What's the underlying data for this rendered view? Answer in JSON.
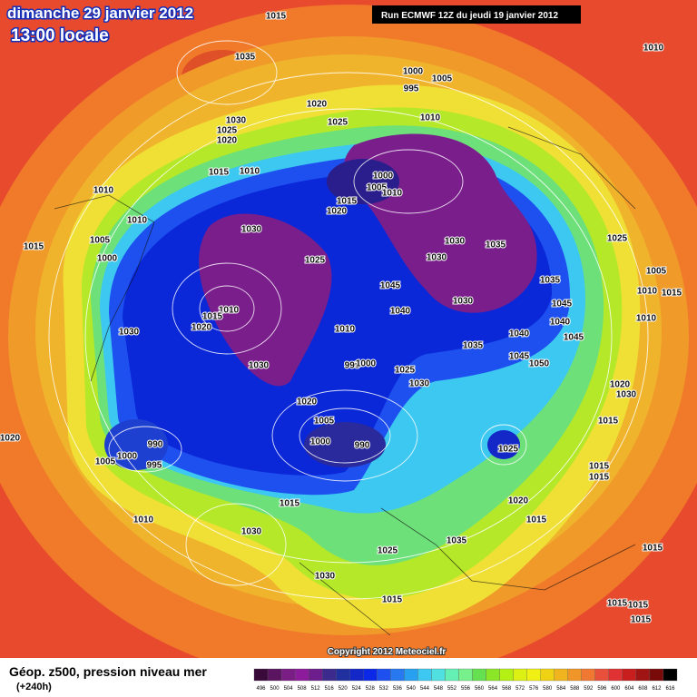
{
  "header": {
    "date": "dimanche 29 janvier 2012",
    "time": "13:00 locale",
    "run": "Run ECMWF 12Z du jeudi 19 janvier 2012"
  },
  "copyright": "Copyright 2012 Meteociel.fr",
  "legend": {
    "title": "Géop. z500, pression niveau mer",
    "subtitle": "(+240h)",
    "labels": [
      "496",
      "500",
      "504",
      "508",
      "512",
      "516",
      "520",
      "524",
      "528",
      "532",
      "536",
      "540",
      "544",
      "548",
      "552",
      "556",
      "560",
      "564",
      "568",
      "572",
      "576",
      "580",
      "584",
      "588",
      "592",
      "596",
      "600",
      "604",
      "608",
      "612",
      "616"
    ],
    "colors": [
      "#3a0a3a",
      "#5a1460",
      "#7a1e86",
      "#8c1c9c",
      "#6e1e8c",
      "#3c2a8c",
      "#20309e",
      "#1428c8",
      "#0a28e6",
      "#1e50f0",
      "#2878f0",
      "#28a0f0",
      "#3cc8f0",
      "#50e0e0",
      "#64f0b4",
      "#78f08c",
      "#64e050",
      "#8ce628",
      "#b4f014",
      "#dcf014",
      "#f0f014",
      "#f0d214",
      "#f0b41e",
      "#f09628",
      "#f07832",
      "#e8503c",
      "#e03232",
      "#c81e1e",
      "#a01414",
      "#780a0a",
      "#000000"
    ]
  },
  "isobar_labels": [
    "1015",
    "1035",
    "1000",
    "1005",
    "995",
    "1010",
    "1020",
    "1025",
    "1030",
    "1025",
    "1020",
    "1010",
    "1015",
    "1010",
    "1010",
    "1010",
    "1000",
    "1005",
    "1010",
    "1015",
    "1020",
    "1030",
    "1025",
    "1030",
    "1035",
    "1030",
    "1025",
    "1005",
    "1015",
    "1000",
    "1045",
    "1035",
    "1030",
    "1005",
    "1010",
    "1015",
    "1040",
    "1045",
    "1010",
    "1015",
    "1020",
    "1030",
    "1040",
    "1010",
    "1040",
    "1045",
    "1035",
    "1010",
    "1030",
    "995",
    "1000",
    "1045",
    "1050",
    "1025",
    "1030",
    "1020",
    "1030",
    "1020",
    "1005",
    "1015",
    "990",
    "1000",
    "1005",
    "995",
    "1000",
    "990",
    "1025",
    "1020",
    "1015",
    "1015",
    "1015",
    "1020",
    "1010",
    "1015",
    "1030",
    "1035",
    "1025",
    "1030",
    "1015",
    "1015",
    "1015",
    "1015",
    "1015"
  ]
}
